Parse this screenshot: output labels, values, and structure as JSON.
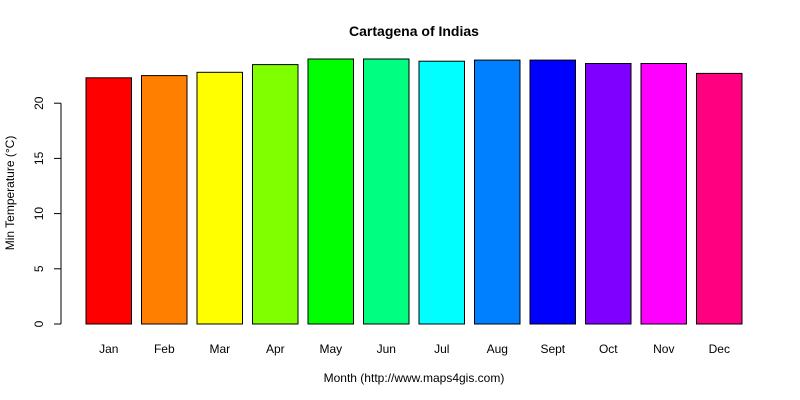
{
  "chart_data": {
    "type": "bar",
    "title": "Cartagena of Indias",
    "xlabel": "Month (http://www.maps4gis.com)",
    "ylabel": "Min Temperature (°C)",
    "ylim": [
      0,
      25
    ],
    "yticks": [
      0,
      5,
      10,
      15,
      20
    ],
    "categories": [
      "Jan",
      "Feb",
      "Mar",
      "Apr",
      "May",
      "Jun",
      "Jul",
      "Aug",
      "Sept",
      "Oct",
      "Nov",
      "Dec"
    ],
    "values": [
      22.3,
      22.5,
      22.8,
      23.5,
      24.0,
      24.0,
      23.8,
      23.9,
      23.9,
      23.6,
      23.6,
      22.7
    ],
    "colors": [
      "#FF0000",
      "#FF8000",
      "#FFFF00",
      "#80FF00",
      "#00FF00",
      "#00FF80",
      "#00FFFF",
      "#0080FF",
      "#0000FF",
      "#8000FF",
      "#FF00FF",
      "#FF0080"
    ],
    "grid": false,
    "legend": "none"
  }
}
